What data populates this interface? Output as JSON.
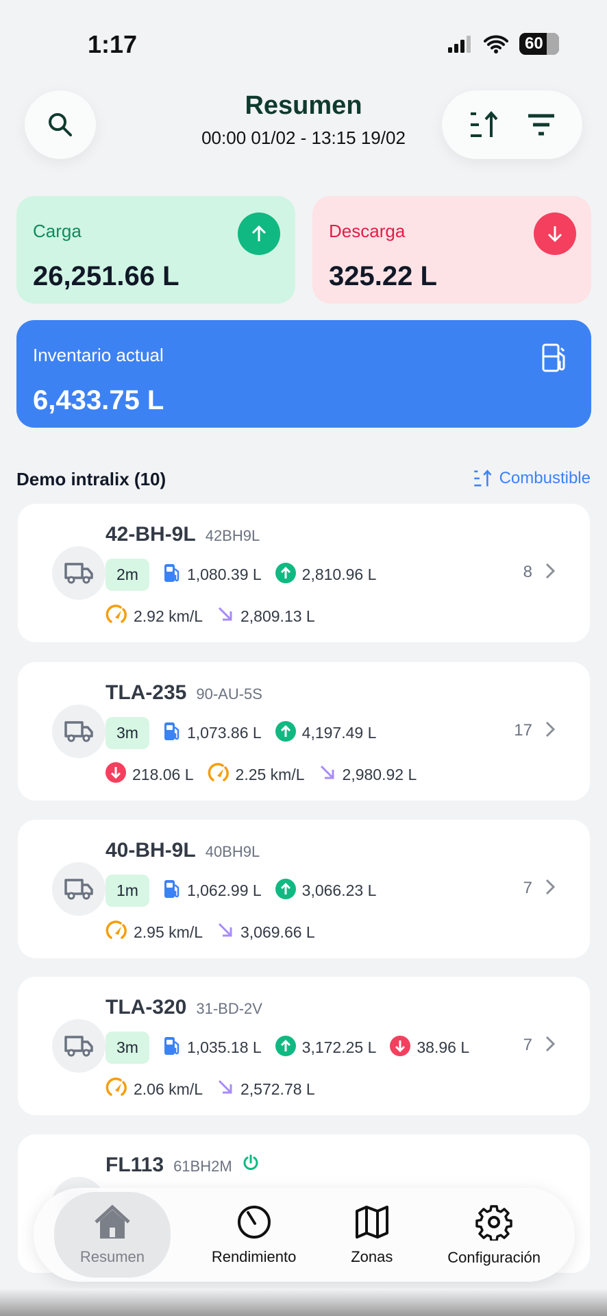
{
  "status_bar": {
    "time": "1:17",
    "battery": "60"
  },
  "header": {
    "title": "Resumen",
    "date_range": "00:00 01/02 - 13:15 19/02"
  },
  "stats": {
    "carga": {
      "label": "Carga",
      "value": "26,251.66 L",
      "color": "#10b981"
    },
    "descarga": {
      "label": "Descarga",
      "value": "325.22 L",
      "color": "#f43f5e"
    },
    "inventario": {
      "label": "Inventario actual",
      "value": "6,433.75 L",
      "color": "#3b82f6"
    }
  },
  "section": {
    "title": "Demo intralix (10)",
    "sort_label": "Combustible"
  },
  "vehicles": [
    {
      "name": "42-BH-9L",
      "plate": "42BH9L",
      "age": "2m",
      "count": "8",
      "row1": [
        {
          "icon": "fuel",
          "value": "1,080.39 L"
        },
        {
          "icon": "up",
          "value": "2,810.96 L"
        }
      ],
      "row2": [
        {
          "icon": "gauge",
          "value": "2.92 km/L"
        },
        {
          "icon": "trend-down",
          "value": "2,809.13 L"
        }
      ]
    },
    {
      "name": "TLA-235",
      "plate": "90-AU-5S",
      "age": "3m",
      "count": "17",
      "row1": [
        {
          "icon": "fuel",
          "value": "1,073.86 L"
        },
        {
          "icon": "up",
          "value": "4,197.49 L"
        }
      ],
      "row2": [
        {
          "icon": "down",
          "value": "218.06 L"
        },
        {
          "icon": "gauge",
          "value": "2.25 km/L"
        },
        {
          "icon": "trend-down",
          "value": "2,980.92 L"
        }
      ]
    },
    {
      "name": "40-BH-9L",
      "plate": "40BH9L",
      "age": "1m",
      "count": "7",
      "row1": [
        {
          "icon": "fuel",
          "value": "1,062.99 L"
        },
        {
          "icon": "up",
          "value": "3,066.23 L"
        }
      ],
      "row2": [
        {
          "icon": "gauge",
          "value": "2.95 km/L"
        },
        {
          "icon": "trend-down",
          "value": "3,069.66 L"
        }
      ]
    },
    {
      "name": "TLA-320",
      "plate": "31-BD-2V",
      "age": "3m",
      "count": "7",
      "row1": [
        {
          "icon": "fuel",
          "value": "1,035.18 L"
        },
        {
          "icon": "up",
          "value": "3,172.25 L"
        },
        {
          "icon": "down",
          "value": "38.96 L"
        }
      ],
      "row2": [
        {
          "icon": "gauge",
          "value": "2.06 km/L"
        },
        {
          "icon": "trend-down",
          "value": "2,572.78 L"
        }
      ]
    },
    {
      "name": "FL113",
      "plate": "61BH2M",
      "power": true,
      "row1": [],
      "row2": []
    }
  ],
  "nav": [
    {
      "label": "Resumen",
      "icon": "home",
      "active": true
    },
    {
      "label": "Rendimiento",
      "icon": "gauge"
    },
    {
      "label": "Zonas",
      "icon": "map"
    },
    {
      "label": "Configuración",
      "icon": "gear"
    }
  ]
}
